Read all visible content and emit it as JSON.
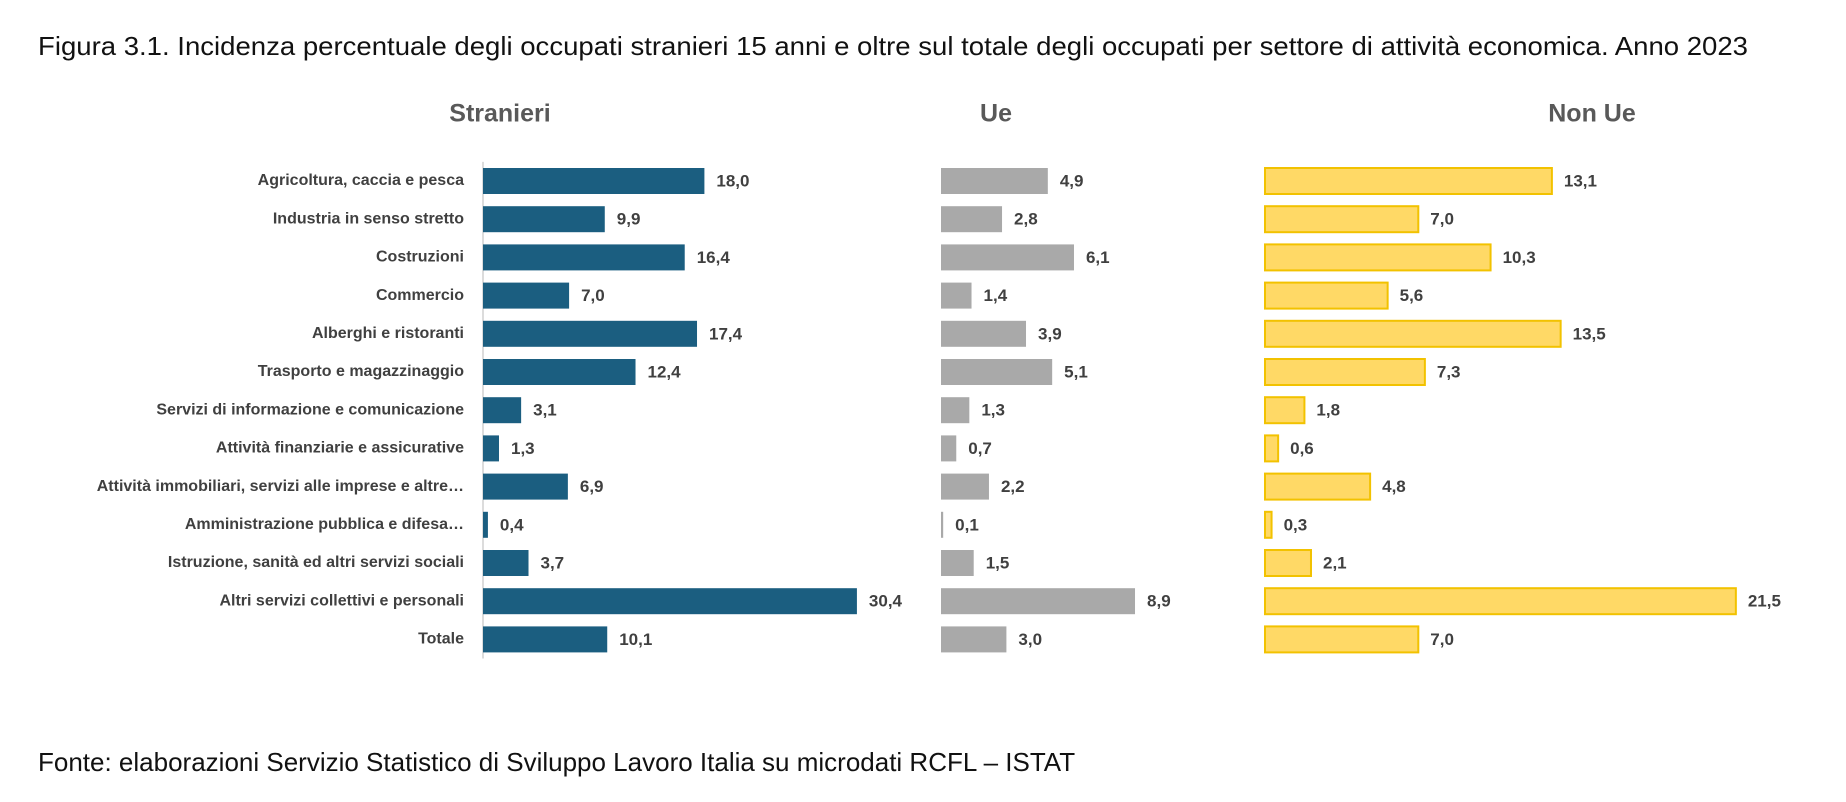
{
  "chart_data": {
    "type": "bar",
    "orientation": "horizontal",
    "title": "Figura 3.1. Incidenza percentuale degli occupati stranieri 15 anni e oltre sul totale degli occupati per settore di attività economica. Anno 2023",
    "source": "Fonte: elaborazioni Servizio Statistico di Sviluppo Lavoro Italia su microdati RCFL – ISTAT",
    "categories": [
      "Agricoltura, caccia e pesca",
      "Industria in senso stretto",
      "Costruzioni",
      "Commercio",
      "Alberghi e ristoranti",
      "Trasporto e magazzinaggio",
      "Servizi di informazione e comunicazione",
      "Attività finanziarie e assicurative",
      "Attività immobiliari, servizi alle imprese e altre…",
      "Amministrazione pubblica e difesa…",
      "Istruzione, sanità ed altri servizi sociali",
      "Altri servizi collettivi e personali",
      "Totale"
    ],
    "series": [
      {
        "name": "Stranieri",
        "color": "#1b5e80",
        "values": [
          18.0,
          9.9,
          16.4,
          7.0,
          17.4,
          12.4,
          3.1,
          1.3,
          6.9,
          0.4,
          3.7,
          30.4,
          10.1
        ],
        "value_labels": [
          "18,0",
          "9,9",
          "16,4",
          "7,0",
          "17,4",
          "12,4",
          "3,1",
          "1,3",
          "6,9",
          "0,4",
          "3,7",
          "30,4",
          "10,1"
        ]
      },
      {
        "name": "Ue",
        "color": "#a9a9a9",
        "values": [
          4.9,
          2.8,
          6.1,
          1.4,
          3.9,
          5.1,
          1.3,
          0.7,
          2.2,
          0.1,
          1.5,
          8.9,
          3.0
        ],
        "value_labels": [
          "4,9",
          "2,8",
          "6,1",
          "1,4",
          "3,9",
          "5,1",
          "1,3",
          "0,7",
          "2,2",
          "0,1",
          "1,5",
          "8,9",
          "3,0"
        ]
      },
      {
        "name": "Non Ue",
        "color": "#ffd966",
        "values": [
          13.1,
          7.0,
          10.3,
          5.6,
          13.5,
          7.3,
          1.8,
          0.6,
          4.8,
          0.3,
          2.1,
          21.5,
          7.0
        ],
        "value_labels": [
          "13,1",
          "7,0",
          "10,3",
          "5,6",
          "13,5",
          "7,3",
          "1,8",
          "0,6",
          "4,8",
          "0,3",
          "2,1",
          "21,5",
          "7,0"
        ]
      }
    ]
  }
}
